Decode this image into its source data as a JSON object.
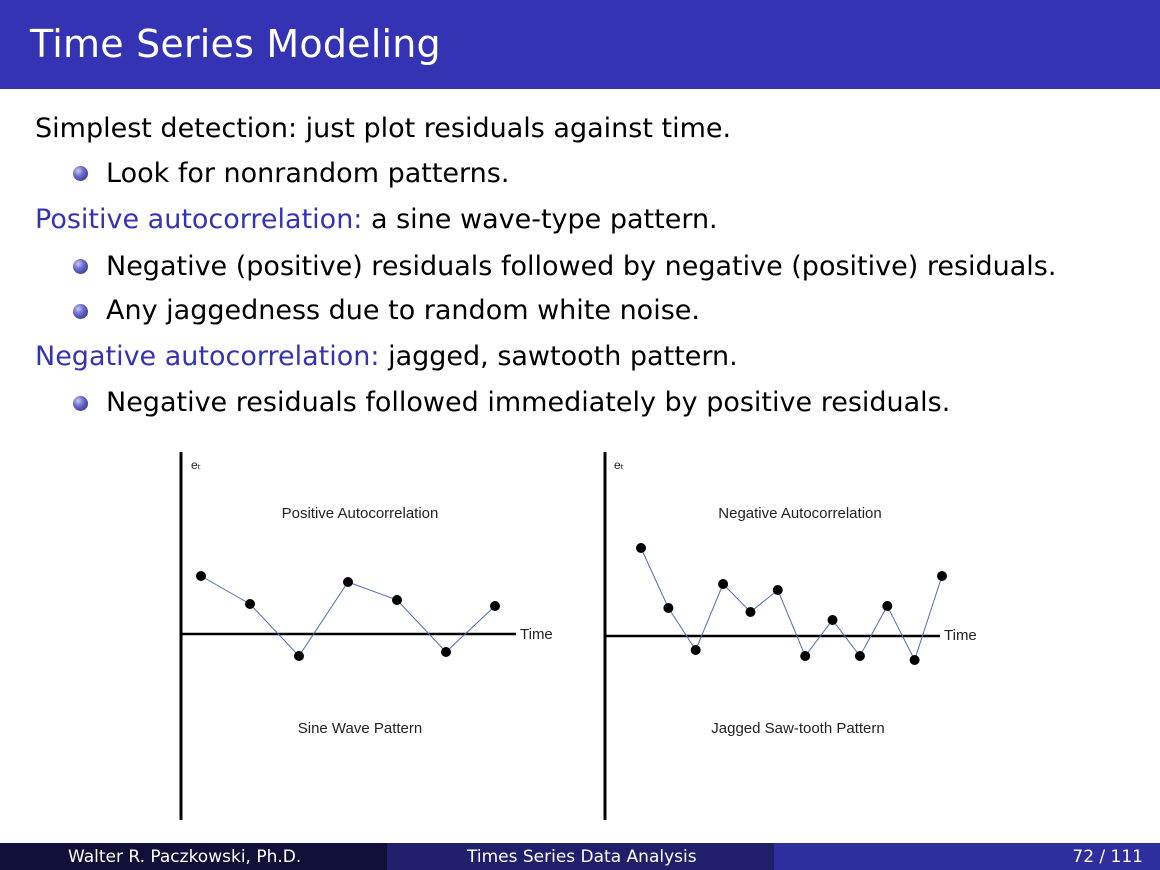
{
  "slide": {
    "title": "Time Series Modeling",
    "accent_color": "#3333b3",
    "lines": [
      {
        "kind": "top",
        "highlight": "",
        "text": "Simplest detection: just plot residuals against time."
      },
      {
        "kind": "sub",
        "text": "Look for nonrandom patterns."
      },
      {
        "kind": "top",
        "highlight": "Positive autocorrelation:",
        "text": " a sine wave-type pattern."
      },
      {
        "kind": "sub",
        "text": "Negative (positive) residuals followed by negative (positive) residuals."
      },
      {
        "kind": "sub",
        "text": "Any jaggedness due to random white noise."
      },
      {
        "kind": "top",
        "highlight": "Negative autocorrelation:",
        "text": " jagged, sawtooth pattern."
      },
      {
        "kind": "sub",
        "text": "Negative residuals followed immediately by positive residuals."
      }
    ]
  },
  "chart_data": [
    {
      "type": "line",
      "title": "Positive Autocorrelation",
      "ylabel": "eₜ",
      "xlabel": "Time",
      "caption": "Sine Wave Pattern",
      "x": [
        1,
        2,
        3,
        4,
        5,
        6,
        7
      ],
      "values": [
        1.45,
        0.75,
        -0.55,
        1.3,
        0.85,
        -0.45,
        0.7
      ],
      "ylim": [
        -4.9,
        4.3
      ]
    },
    {
      "type": "line",
      "title": "Negative Autocorrelation",
      "ylabel": "eₜ",
      "xlabel": "Time",
      "caption": "Jagged Saw-tooth Pattern",
      "x": [
        1,
        2,
        3,
        4,
        5,
        6,
        7,
        8,
        9,
        10,
        11,
        12
      ],
      "values": [
        2.2,
        0.7,
        -0.35,
        1.3,
        0.6,
        1.15,
        -0.5,
        0.4,
        -0.5,
        0.75,
        -0.6,
        1.5
      ],
      "ylim": [
        -4.9,
        4.3
      ]
    }
  ],
  "footer": {
    "author": "Walter R. Paczkowski, Ph.D.",
    "course": "Times Series Data Analysis",
    "page": "72 / 111",
    "colors": [
      "#0f0f38",
      "#1f1f6b",
      "#2e2e9e"
    ]
  }
}
